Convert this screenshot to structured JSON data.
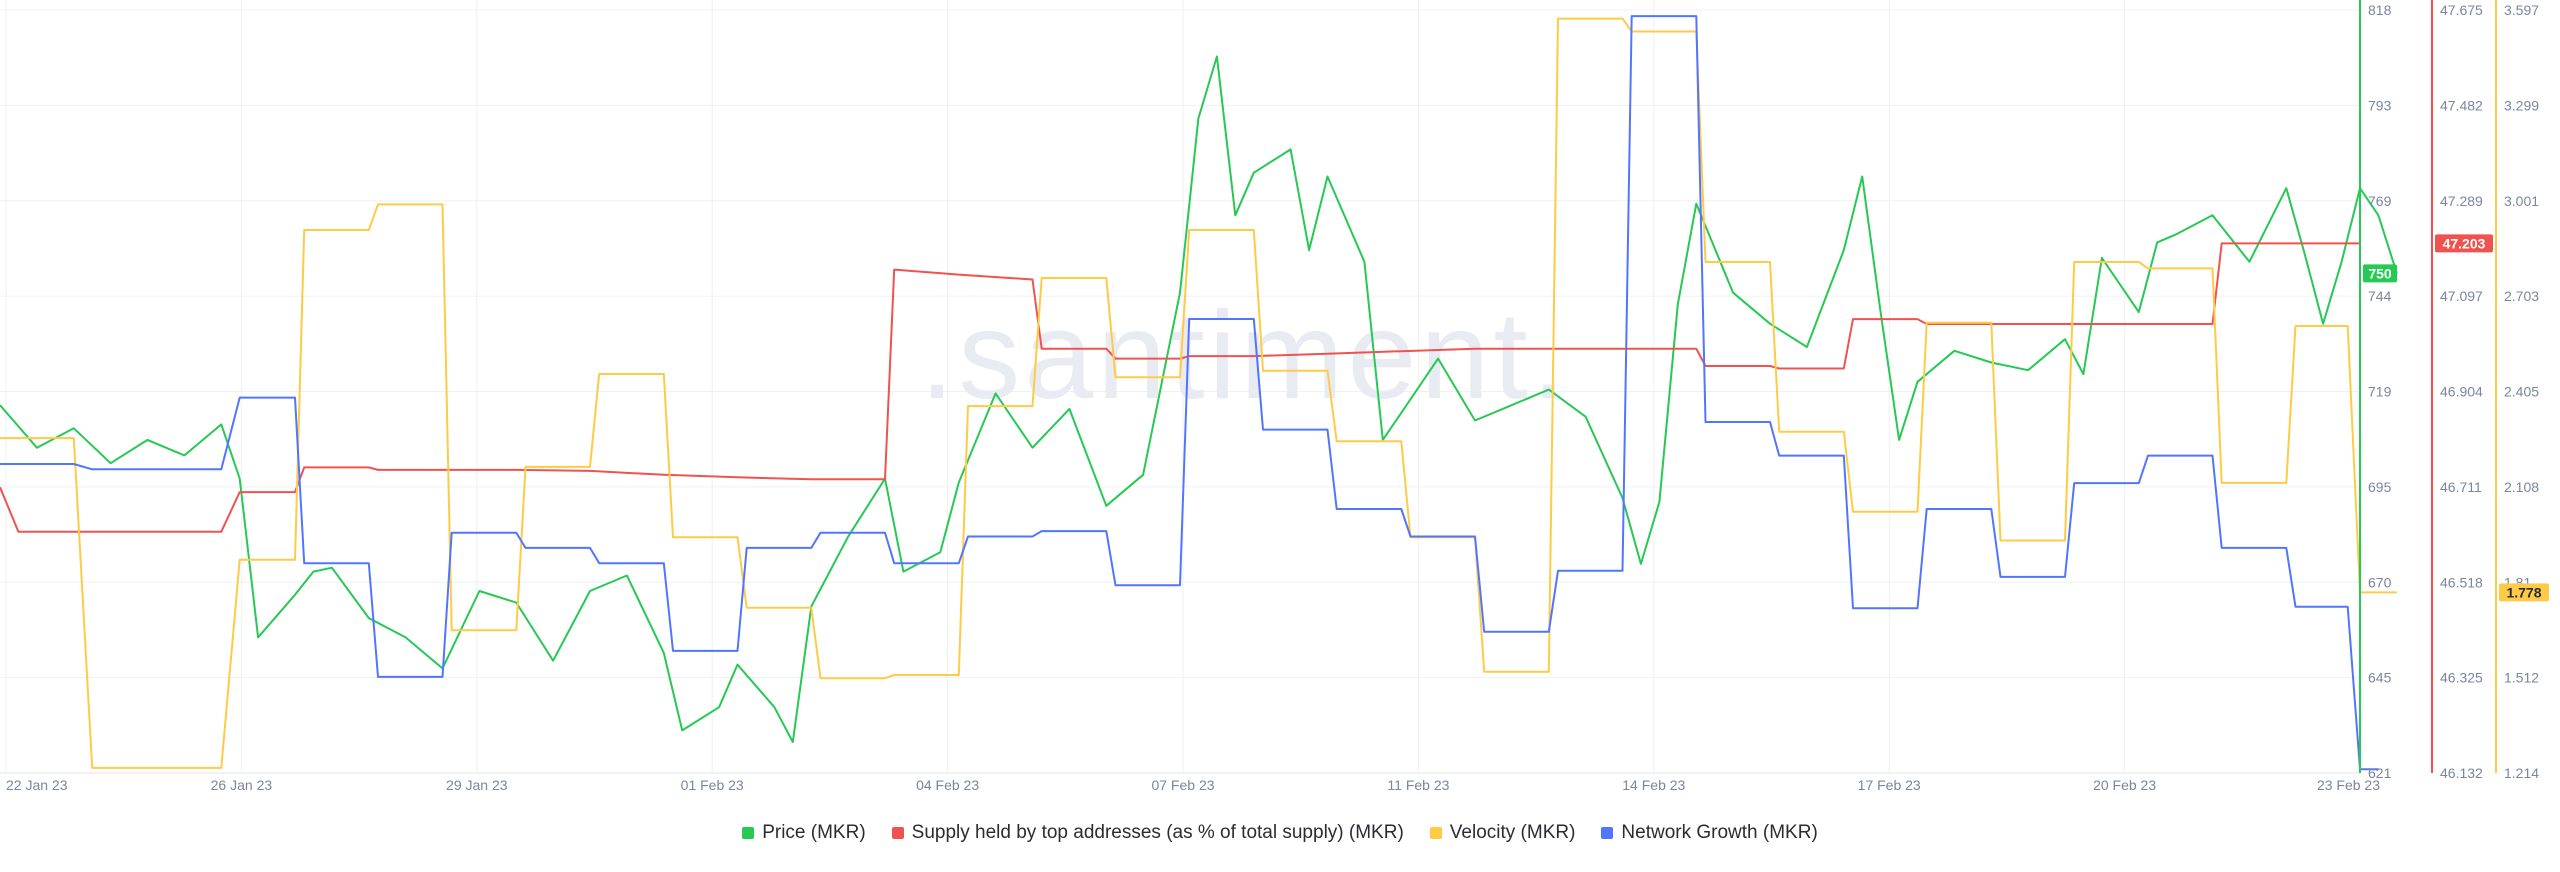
{
  "watermark": ".santiment.",
  "x_ticks": [
    "22 Jan 23",
    "26 Jan 23",
    "29 Jan 23",
    "01 Feb 23",
    "04 Feb 23",
    "07 Feb 23",
    "11 Feb 23",
    "14 Feb 23",
    "17 Feb 23",
    "20 Feb 23",
    "23 Feb 23"
  ],
  "axes": {
    "price": {
      "ticks": [
        "818",
        "793",
        "769",
        "744",
        "719",
        "695",
        "670",
        "645",
        "621"
      ],
      "color": "#26c953",
      "current": "750"
    },
    "supply": {
      "ticks": [
        "47.675",
        "47.482",
        "47.289",
        "47.097",
        "46.904",
        "46.711",
        "46.518",
        "46.325",
        "46.132"
      ],
      "color": "#ef5350",
      "current": "47.203"
    },
    "velocity": {
      "ticks": [
        "3.597",
        "3.299",
        "3.001",
        "2.703",
        "2.405",
        "2.108",
        "1.81",
        "1.512",
        "1.214"
      ],
      "color": "#ffcb47",
      "current": "1.778"
    }
  },
  "legend": [
    {
      "label": "Price (MKR)",
      "color": "#26c953"
    },
    {
      "label": "Supply held by top addresses (as % of total supply) (MKR)",
      "color": "#ef5350"
    },
    {
      "label": "Velocity (MKR)",
      "color": "#ffcb47"
    },
    {
      "label": "Network Growth (MKR)",
      "color": "#5275ff"
    }
  ],
  "chart_data": {
    "type": "line",
    "x_range": [
      "2023-01-22",
      "2023-02-23"
    ],
    "grid": true,
    "legend_position": "bottom-center",
    "series": [
      {
        "name": "Price (MKR)",
        "axis": "price",
        "ylim": [
          621,
          818
        ],
        "color": "#26c953",
        "points": [
          [
            "2023-01-22",
            716
          ],
          [
            "2023-01-22T12",
            705
          ],
          [
            "2023-01-23",
            710
          ],
          [
            "2023-01-23T12",
            701
          ],
          [
            "2023-01-24",
            707
          ],
          [
            "2023-01-24T12",
            703
          ],
          [
            "2023-01-25",
            711
          ],
          [
            "2023-01-25T06",
            697
          ],
          [
            "2023-01-25T12",
            656
          ],
          [
            "2023-01-26",
            667
          ],
          [
            "2023-01-26T06",
            673
          ],
          [
            "2023-01-26T12",
            674
          ],
          [
            "2023-01-27",
            661
          ],
          [
            "2023-01-27T12",
            656
          ],
          [
            "2023-01-28",
            648
          ],
          [
            "2023-01-28T12",
            668
          ],
          [
            "2023-01-29",
            665
          ],
          [
            "2023-01-29T12",
            650
          ],
          [
            "2023-01-30",
            668
          ],
          [
            "2023-01-30T12",
            672
          ],
          [
            "2023-01-31",
            652
          ],
          [
            "2023-01-31T06",
            632
          ],
          [
            "2023-01-31T18",
            638
          ],
          [
            "2023-02-01",
            649
          ],
          [
            "2023-02-01T12",
            638
          ],
          [
            "2023-02-01T18",
            629
          ],
          [
            "2023-02-02",
            664
          ],
          [
            "2023-02-02T12",
            682
          ],
          [
            "2023-02-03",
            697
          ],
          [
            "2023-02-03T06",
            673
          ],
          [
            "2023-02-03T18",
            678
          ],
          [
            "2023-02-04",
            696
          ],
          [
            "2023-02-04T12",
            719
          ],
          [
            "2023-02-05",
            705
          ],
          [
            "2023-02-05T12",
            715
          ],
          [
            "2023-02-06",
            690
          ],
          [
            "2023-02-06T12",
            698
          ],
          [
            "2023-02-07",
            745
          ],
          [
            "2023-02-07T06",
            790
          ],
          [
            "2023-02-07T12",
            806
          ],
          [
            "2023-02-07T18",
            765
          ],
          [
            "2023-02-08",
            776
          ],
          [
            "2023-02-08T12",
            782
          ],
          [
            "2023-02-08T18",
            756
          ],
          [
            "2023-02-09",
            775
          ],
          [
            "2023-02-09T12",
            753
          ],
          [
            "2023-02-09T18",
            707
          ],
          [
            "2023-02-10",
            714
          ],
          [
            "2023-02-10T12",
            728
          ],
          [
            "2023-02-11",
            712
          ],
          [
            "2023-02-11T12",
            716
          ],
          [
            "2023-02-12",
            720
          ],
          [
            "2023-02-12T12",
            713
          ],
          [
            "2023-02-13",
            692
          ],
          [
            "2023-02-13T06",
            675
          ],
          [
            "2023-02-13T12",
            691
          ],
          [
            "2023-02-13T18",
            742
          ],
          [
            "2023-02-14",
            768
          ],
          [
            "2023-02-14T12",
            745
          ],
          [
            "2023-02-15",
            737
          ],
          [
            "2023-02-15T12",
            731
          ],
          [
            "2023-02-16",
            756
          ],
          [
            "2023-02-16T06",
            775
          ],
          [
            "2023-02-16T12",
            740
          ],
          [
            "2023-02-16T18",
            707
          ],
          [
            "2023-02-17",
            722
          ],
          [
            "2023-02-17T12",
            730
          ],
          [
            "2023-02-18",
            727
          ],
          [
            "2023-02-18T12",
            725
          ],
          [
            "2023-02-19",
            733
          ],
          [
            "2023-02-19T06",
            724
          ],
          [
            "2023-02-19T12",
            754
          ],
          [
            "2023-02-20",
            740
          ],
          [
            "2023-02-20T06",
            758
          ],
          [
            "2023-02-20T12",
            760
          ],
          [
            "2023-02-21",
            765
          ],
          [
            "2023-02-21T12",
            753
          ],
          [
            "2023-02-22",
            772
          ],
          [
            "2023-02-22T06",
            755
          ],
          [
            "2023-02-22T12",
            737
          ],
          [
            "2023-02-22T18",
            753
          ],
          [
            "2023-02-23",
            772
          ],
          [
            "2023-02-23T06",
            765
          ],
          [
            "2023-02-23T12",
            750
          ]
        ]
      },
      {
        "name": "Supply held by top addresses (as % of total supply) (MKR)",
        "axis": "supply",
        "ylim": [
          46.132,
          47.675
        ],
        "color": "#ef5350",
        "points": [
          [
            "2023-01-22",
            46.71
          ],
          [
            "2023-01-22T06",
            46.62
          ],
          [
            "2023-01-25",
            46.62
          ],
          [
            "2023-01-25T06",
            46.7
          ],
          [
            "2023-01-26",
            46.7
          ],
          [
            "2023-01-26T03",
            46.75
          ],
          [
            "2023-01-27",
            46.75
          ],
          [
            "2023-01-27T03",
            46.745
          ],
          [
            "2023-01-29",
            46.745
          ],
          [
            "2023-01-30",
            46.743
          ],
          [
            "2023-01-31",
            46.735
          ],
          [
            "2023-02-01",
            46.73
          ],
          [
            "2023-02-02",
            46.726
          ],
          [
            "2023-02-03",
            46.726
          ],
          [
            "2023-02-03T03",
            47.15
          ],
          [
            "2023-02-04",
            47.14
          ],
          [
            "2023-02-05",
            47.13
          ],
          [
            "2023-02-05T03",
            46.99
          ],
          [
            "2023-02-06",
            46.99
          ],
          [
            "2023-02-06T03",
            46.97
          ],
          [
            "2023-02-07",
            46.97
          ],
          [
            "2023-02-07T03",
            46.975
          ],
          [
            "2023-02-08",
            46.975
          ],
          [
            "2023-02-09",
            46.98
          ],
          [
            "2023-02-10",
            46.985
          ],
          [
            "2023-02-11",
            46.99
          ],
          [
            "2023-02-12",
            46.99
          ],
          [
            "2023-02-13",
            46.99
          ],
          [
            "2023-02-14",
            46.99
          ],
          [
            "2023-02-14T03",
            46.955
          ],
          [
            "2023-02-15",
            46.955
          ],
          [
            "2023-02-15T03",
            46.95
          ],
          [
            "2023-02-16",
            46.95
          ],
          [
            "2023-02-16T03",
            47.05
          ],
          [
            "2023-02-17",
            47.05
          ],
          [
            "2023-02-17T03",
            47.04
          ],
          [
            "2023-02-21",
            47.04
          ],
          [
            "2023-02-21T03",
            47.203
          ],
          [
            "2023-02-23",
            47.203
          ]
        ]
      },
      {
        "name": "Velocity (MKR)",
        "axis": "velocity",
        "ylim": [
          1.214,
          3.597
        ],
        "color": "#ffcb47",
        "points": [
          [
            "2023-01-22",
            2.26
          ],
          [
            "2023-01-23",
            2.26
          ],
          [
            "2023-01-23T06",
            1.23
          ],
          [
            "2023-01-25",
            1.23
          ],
          [
            "2023-01-25T06",
            1.88
          ],
          [
            "2023-01-26",
            1.88
          ],
          [
            "2023-01-26T03",
            2.91
          ],
          [
            "2023-01-27",
            2.91
          ],
          [
            "2023-01-27T03",
            2.99
          ],
          [
            "2023-01-28",
            2.99
          ],
          [
            "2023-01-28T03",
            1.66
          ],
          [
            "2023-01-29",
            1.66
          ],
          [
            "2023-01-29T03",
            2.17
          ],
          [
            "2023-01-30",
            2.17
          ],
          [
            "2023-01-30T03",
            2.46
          ],
          [
            "2023-01-31",
            2.46
          ],
          [
            "2023-01-31T03",
            1.95
          ],
          [
            "2023-02-01",
            1.95
          ],
          [
            "2023-02-01T03",
            1.73
          ],
          [
            "2023-02-02",
            1.73
          ],
          [
            "2023-02-02T03",
            1.51
          ],
          [
            "2023-02-03",
            1.51
          ],
          [
            "2023-02-03T03",
            1.52
          ],
          [
            "2023-02-04",
            1.52
          ],
          [
            "2023-02-04T03",
            2.36
          ],
          [
            "2023-02-05",
            2.36
          ],
          [
            "2023-02-05T03",
            2.76
          ],
          [
            "2023-02-06",
            2.76
          ],
          [
            "2023-02-06T03",
            2.45
          ],
          [
            "2023-02-07",
            2.45
          ],
          [
            "2023-02-07T03",
            2.91
          ],
          [
            "2023-02-08",
            2.91
          ],
          [
            "2023-02-08T03",
            2.47
          ],
          [
            "2023-02-09",
            2.47
          ],
          [
            "2023-02-09T03",
            2.25
          ],
          [
            "2023-02-10",
            2.25
          ],
          [
            "2023-02-10T03",
            1.95
          ],
          [
            "2023-02-11",
            1.95
          ],
          [
            "2023-02-11T03",
            1.53
          ],
          [
            "2023-02-12",
            1.53
          ],
          [
            "2023-02-12T03",
            3.57
          ],
          [
            "2023-02-13",
            3.57
          ],
          [
            "2023-02-13T03",
            3.53
          ],
          [
            "2023-02-14",
            3.53
          ],
          [
            "2023-02-14T03",
            2.81
          ],
          [
            "2023-02-15",
            2.81
          ],
          [
            "2023-02-15T03",
            2.28
          ],
          [
            "2023-02-16",
            2.28
          ],
          [
            "2023-02-16T03",
            2.03
          ],
          [
            "2023-02-17",
            2.03
          ],
          [
            "2023-02-17T03",
            2.62
          ],
          [
            "2023-02-18",
            2.62
          ],
          [
            "2023-02-18T03",
            1.94
          ],
          [
            "2023-02-19",
            1.94
          ],
          [
            "2023-02-19T03",
            2.81
          ],
          [
            "2023-02-20",
            2.81
          ],
          [
            "2023-02-20T03",
            2.79
          ],
          [
            "2023-02-21",
            2.79
          ],
          [
            "2023-02-21T03",
            2.12
          ],
          [
            "2023-02-22",
            2.12
          ],
          [
            "2023-02-22T03",
            2.61
          ],
          [
            "2023-02-22T20",
            2.61
          ],
          [
            "2023-02-23",
            1.778
          ],
          [
            "2023-02-23T12",
            1.778
          ]
        ]
      },
      {
        "name": "Network Growth (MKR)",
        "axis": "network",
        "ylim": [
          0,
          100
        ],
        "color": "#5275ff",
        "note": "no axis labels shown; values relative 0-100",
        "points": [
          [
            "2023-01-22",
            40.5
          ],
          [
            "2023-01-23",
            40.5
          ],
          [
            "2023-01-23T06",
            39.8
          ],
          [
            "2023-01-25",
            39.8
          ],
          [
            "2023-01-25T06",
            49.2
          ],
          [
            "2023-01-26",
            49.2
          ],
          [
            "2023-01-26T03",
            27.5
          ],
          [
            "2023-01-27",
            27.5
          ],
          [
            "2023-01-27T03",
            12.6
          ],
          [
            "2023-01-28",
            12.6
          ],
          [
            "2023-01-28T03",
            31.5
          ],
          [
            "2023-01-29",
            31.5
          ],
          [
            "2023-01-29T03",
            29.5
          ],
          [
            "2023-01-30",
            29.5
          ],
          [
            "2023-01-30T03",
            27.5
          ],
          [
            "2023-01-31",
            27.5
          ],
          [
            "2023-01-31T03",
            16.0
          ],
          [
            "2023-02-01",
            16.0
          ],
          [
            "2023-02-01T03",
            29.5
          ],
          [
            "2023-02-02",
            29.5
          ],
          [
            "2023-02-02T03",
            31.5
          ],
          [
            "2023-02-03",
            31.5
          ],
          [
            "2023-02-03T03",
            27.5
          ],
          [
            "2023-02-04",
            27.5
          ],
          [
            "2023-02-04T03",
            31.0
          ],
          [
            "2023-02-05",
            31.0
          ],
          [
            "2023-02-05T03",
            31.7
          ],
          [
            "2023-02-06",
            31.7
          ],
          [
            "2023-02-06T03",
            24.6
          ],
          [
            "2023-02-07",
            24.6
          ],
          [
            "2023-02-07T03",
            59.5
          ],
          [
            "2023-02-08",
            59.5
          ],
          [
            "2023-02-08T03",
            45.0
          ],
          [
            "2023-02-09",
            45.0
          ],
          [
            "2023-02-09T03",
            34.6
          ],
          [
            "2023-02-10",
            34.6
          ],
          [
            "2023-02-10T03",
            31.0
          ],
          [
            "2023-02-11",
            31.0
          ],
          [
            "2023-02-11T03",
            18.5
          ],
          [
            "2023-02-12",
            18.5
          ],
          [
            "2023-02-12T03",
            26.5
          ],
          [
            "2023-02-13",
            26.5
          ],
          [
            "2023-02-13T03",
            99.2
          ],
          [
            "2023-02-14",
            99.2
          ],
          [
            "2023-02-14T03",
            46.0
          ],
          [
            "2023-02-15",
            46.0
          ],
          [
            "2023-02-15T03",
            41.6
          ],
          [
            "2023-02-16",
            41.6
          ],
          [
            "2023-02-16T03",
            21.6
          ],
          [
            "2023-02-17",
            21.6
          ],
          [
            "2023-02-17T03",
            34.6
          ],
          [
            "2023-02-18",
            34.6
          ],
          [
            "2023-02-18T03",
            25.7
          ],
          [
            "2023-02-19",
            25.7
          ],
          [
            "2023-02-19T03",
            38.0
          ],
          [
            "2023-02-20",
            38.0
          ],
          [
            "2023-02-20T03",
            41.6
          ],
          [
            "2023-02-21",
            41.6
          ],
          [
            "2023-02-21T03",
            29.5
          ],
          [
            "2023-02-22",
            29.5
          ],
          [
            "2023-02-22T03",
            21.8
          ],
          [
            "2023-02-22T20",
            21.8
          ],
          [
            "2023-02-23",
            0.5
          ],
          [
            "2023-02-23T06",
            0.5
          ]
        ]
      }
    ]
  }
}
